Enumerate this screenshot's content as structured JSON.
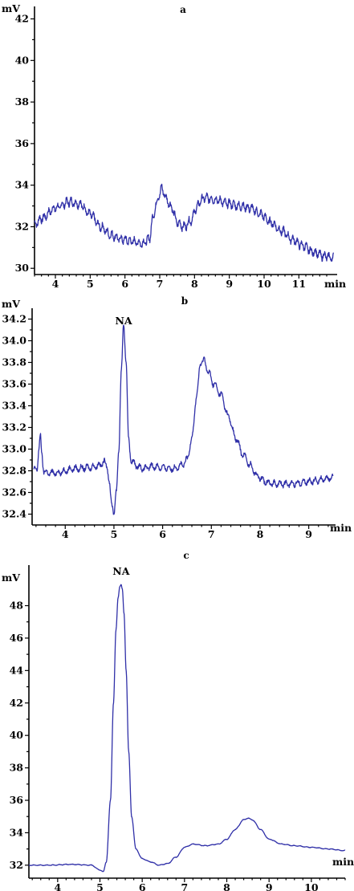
{
  "chart_data": [
    {
      "type": "line",
      "panel": "a",
      "title": "a",
      "ylabel": "mV",
      "xlabel": "min",
      "xlim": [
        3.4,
        12.1
      ],
      "ylim": [
        29.7,
        42.6
      ],
      "xticks": [
        4,
        5,
        6,
        7,
        8,
        9,
        10,
        11
      ],
      "yticks": [
        30,
        32,
        34,
        36,
        38,
        40,
        42
      ],
      "noise": {
        "amplitude": 0.28,
        "period": 0.13
      },
      "series": [
        {
          "x": [
            3.4,
            3.6,
            4.0,
            4.4,
            4.7,
            5.0,
            5.3,
            5.6,
            5.9,
            6.2,
            6.5,
            6.7,
            6.8,
            6.9,
            7.0,
            7.05,
            7.1,
            7.2,
            7.35,
            7.5,
            7.7,
            7.9,
            8.05,
            8.2,
            8.3,
            8.6,
            9.0,
            9.3,
            9.6,
            9.9,
            10.2,
            10.5,
            10.8,
            11.1,
            11.4,
            11.7,
            12.0
          ],
          "y": [
            32.1,
            32.4,
            32.9,
            33.2,
            33.1,
            32.6,
            32.0,
            31.6,
            31.4,
            31.3,
            31.2,
            31.4,
            32.4,
            33.1,
            33.6,
            33.85,
            33.7,
            33.3,
            32.9,
            32.2,
            32.0,
            32.3,
            32.9,
            33.3,
            33.4,
            33.3,
            33.1,
            33.0,
            32.9,
            32.6,
            32.2,
            31.8,
            31.4,
            31.1,
            30.8,
            30.6,
            30.5
          ]
        }
      ]
    },
    {
      "type": "line",
      "panel": "b",
      "title": "b",
      "ylabel": "mV",
      "xlabel": "min",
      "xlim": [
        3.32,
        9.55
      ],
      "ylim": [
        32.3,
        34.3
      ],
      "xticks": [
        4,
        5,
        6,
        7,
        8,
        9
      ],
      "yticks": [
        32.4,
        32.6,
        32.8,
        33.0,
        33.2,
        33.4,
        33.6,
        33.8,
        34.0,
        34.2
      ],
      "annotations": [
        {
          "text": "NA",
          "x": 5.2
        }
      ],
      "noise": {
        "amplitude": 0.04,
        "period": 0.12
      },
      "series": [
        {
          "x": [
            3.35,
            3.42,
            3.46,
            3.49,
            3.52,
            3.56,
            3.62,
            3.8,
            4.2,
            4.5,
            4.7,
            4.8,
            4.86,
            4.9,
            4.95,
            5.0,
            5.05,
            5.1,
            5.15,
            5.2,
            5.25,
            5.3,
            5.35,
            5.45,
            5.6,
            5.8,
            6.0,
            6.2,
            6.4,
            6.5,
            6.6,
            6.7,
            6.78,
            6.85,
            6.95,
            7.05,
            7.2,
            7.35,
            7.5,
            7.65,
            7.8,
            7.95,
            8.1,
            8.3,
            8.6,
            9.0,
            9.3,
            9.5
          ],
          "y": [
            32.8,
            32.82,
            33.0,
            33.12,
            32.95,
            32.8,
            32.78,
            32.78,
            32.82,
            32.83,
            32.85,
            32.88,
            32.85,
            32.7,
            32.5,
            32.42,
            32.6,
            33.0,
            33.7,
            34.15,
            33.8,
            33.1,
            32.9,
            32.85,
            32.82,
            32.84,
            32.83,
            32.82,
            32.85,
            32.9,
            33.1,
            33.5,
            33.8,
            33.82,
            33.7,
            33.6,
            33.5,
            33.3,
            33.1,
            32.95,
            32.85,
            32.75,
            32.7,
            32.68,
            32.68,
            32.7,
            32.72,
            32.74
          ]
        }
      ]
    },
    {
      "type": "line",
      "panel": "c",
      "title": "c",
      "ylabel": "mV",
      "xlabel": "min",
      "xlim": [
        3.32,
        10.8
      ],
      "ylim": [
        31.2,
        50.5
      ],
      "xticks": [
        4,
        5,
        6,
        7,
        8,
        9,
        10
      ],
      "yticks": [
        32,
        34,
        36,
        38,
        40,
        42,
        44,
        46,
        48
      ],
      "annotations": [
        {
          "text": "NA",
          "x": 5.5
        }
      ],
      "noise": {
        "amplitude": 0.03,
        "period": 0.15
      },
      "series": [
        {
          "x": [
            3.32,
            3.8,
            4.3,
            4.8,
            5.0,
            5.08,
            5.15,
            5.25,
            5.32,
            5.38,
            5.43,
            5.47,
            5.5,
            5.53,
            5.57,
            5.62,
            5.68,
            5.75,
            5.85,
            6.0,
            6.2,
            6.4,
            6.6,
            6.8,
            7.0,
            7.2,
            7.5,
            7.8,
            8.0,
            8.2,
            8.4,
            8.5,
            8.6,
            8.8,
            9.0,
            9.3,
            9.6,
            10.0,
            10.4,
            10.8
          ],
          "y": [
            32.0,
            32.0,
            32.05,
            32.0,
            31.7,
            31.6,
            32.2,
            36.0,
            42.0,
            46.5,
            48.5,
            49.2,
            49.3,
            49.0,
            47.5,
            44.0,
            39.0,
            35.0,
            33.0,
            32.4,
            32.2,
            32.0,
            32.1,
            32.5,
            33.1,
            33.3,
            33.2,
            33.3,
            33.6,
            34.2,
            34.8,
            34.9,
            34.8,
            34.2,
            33.6,
            33.3,
            33.2,
            33.1,
            33.0,
            32.9
          ]
        }
      ]
    }
  ]
}
